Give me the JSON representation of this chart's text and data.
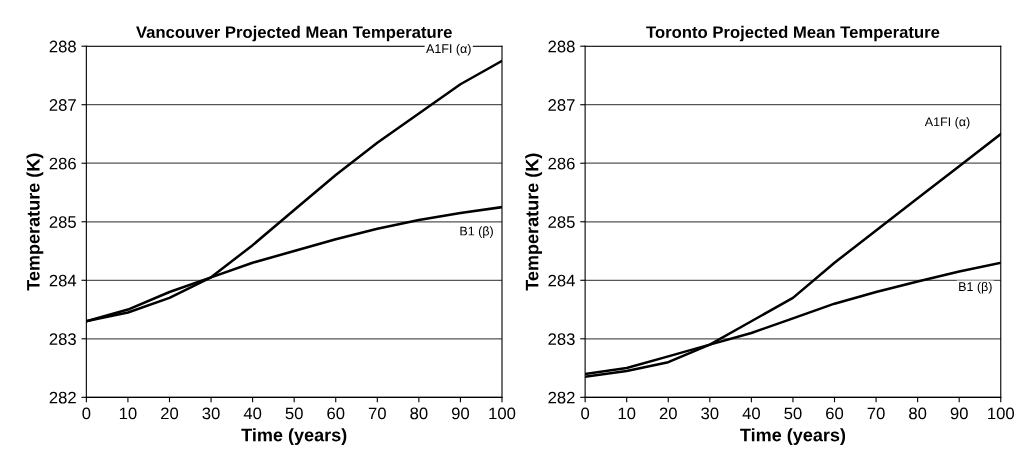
{
  "chart_data": [
    {
      "type": "line",
      "title": "Vancouver Projected Mean Temperature",
      "xlabel": "Time (years)",
      "ylabel": "Temperature (K)",
      "x": [
        0,
        10,
        20,
        30,
        40,
        50,
        60,
        70,
        80,
        90,
        100
      ],
      "xlim": [
        0,
        100
      ],
      "xticks": [
        0,
        10,
        20,
        30,
        40,
        50,
        60,
        70,
        80,
        90,
        100
      ],
      "ylim": [
        282,
        288
      ],
      "yticks": [
        282,
        283,
        284,
        285,
        286,
        287,
        288
      ],
      "grid": "y",
      "legend": false,
      "marker": "none",
      "line_style": "solid",
      "series": [
        {
          "name": "A1FI (α)",
          "color": "#000000",
          "values": [
            283.3,
            283.45,
            283.7,
            284.05,
            284.6,
            285.2,
            285.8,
            286.35,
            286.85,
            287.35,
            287.75
          ]
        },
        {
          "name": "B1 (β)",
          "color": "#000000",
          "values": [
            283.3,
            283.5,
            283.8,
            284.05,
            284.3,
            284.5,
            284.7,
            284.88,
            285.03,
            285.15,
            285.25
          ]
        }
      ]
    },
    {
      "type": "line",
      "title": "Toronto Projected Mean Temperature",
      "xlabel": "Time (years)",
      "ylabel": "Temperature (K)",
      "x": [
        0,
        10,
        20,
        30,
        40,
        50,
        60,
        70,
        80,
        90,
        100
      ],
      "xlim": [
        0,
        100
      ],
      "xticks": [
        0,
        10,
        20,
        30,
        40,
        50,
        60,
        70,
        80,
        90,
        100
      ],
      "ylim": [
        282,
        288
      ],
      "yticks": [
        282,
        283,
        284,
        285,
        286,
        287,
        288
      ],
      "grid": "y",
      "legend": false,
      "marker": "none",
      "line_style": "solid",
      "series": [
        {
          "name": "A1FI (α)",
          "color": "#000000",
          "values": [
            282.35,
            282.45,
            282.6,
            282.9,
            283.3,
            283.7,
            284.3,
            284.85,
            285.4,
            285.95,
            286.5
          ]
        },
        {
          "name": "B1 (β)",
          "color": "#000000",
          "values": [
            282.4,
            282.5,
            282.7,
            282.9,
            283.1,
            283.35,
            283.6,
            283.8,
            283.98,
            284.15,
            284.3
          ]
        }
      ]
    }
  ]
}
